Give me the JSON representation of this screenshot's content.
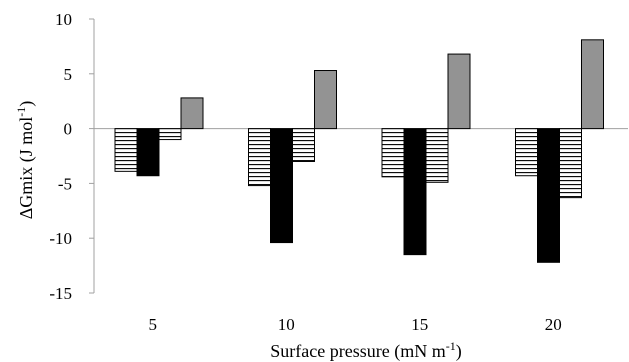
{
  "chart_data": {
    "type": "bar",
    "title": "",
    "xlabel_parts": [
      "Surface pressure (mN m",
      "-1",
      ")"
    ],
    "ylabel_parts": [
      "ΔGmix (J mol",
      "-1",
      ")"
    ],
    "categories": [
      "5",
      "10",
      "15",
      "20"
    ],
    "ylim": [
      -15,
      10
    ],
    "yticks": [
      10,
      5,
      0,
      -5,
      -10,
      -15
    ],
    "ytick_labels": [
      "10",
      "5",
      "0",
      "-5",
      "-10",
      "-15"
    ],
    "grid": false,
    "legend": "none",
    "series": [
      {
        "fill": "horizontal-hatch",
        "values": [
          -3.9,
          -5.2,
          -4.4,
          -4.3
        ]
      },
      {
        "fill": "#000000",
        "values": [
          -4.3,
          -10.4,
          -11.5,
          -12.2
        ]
      },
      {
        "fill": "horizontal-hatch",
        "values": [
          -1.0,
          -3.0,
          -4.9,
          -6.3
        ]
      },
      {
        "fill": "#939393",
        "values": [
          2.8,
          5.3,
          6.8,
          8.1
        ]
      }
    ]
  }
}
